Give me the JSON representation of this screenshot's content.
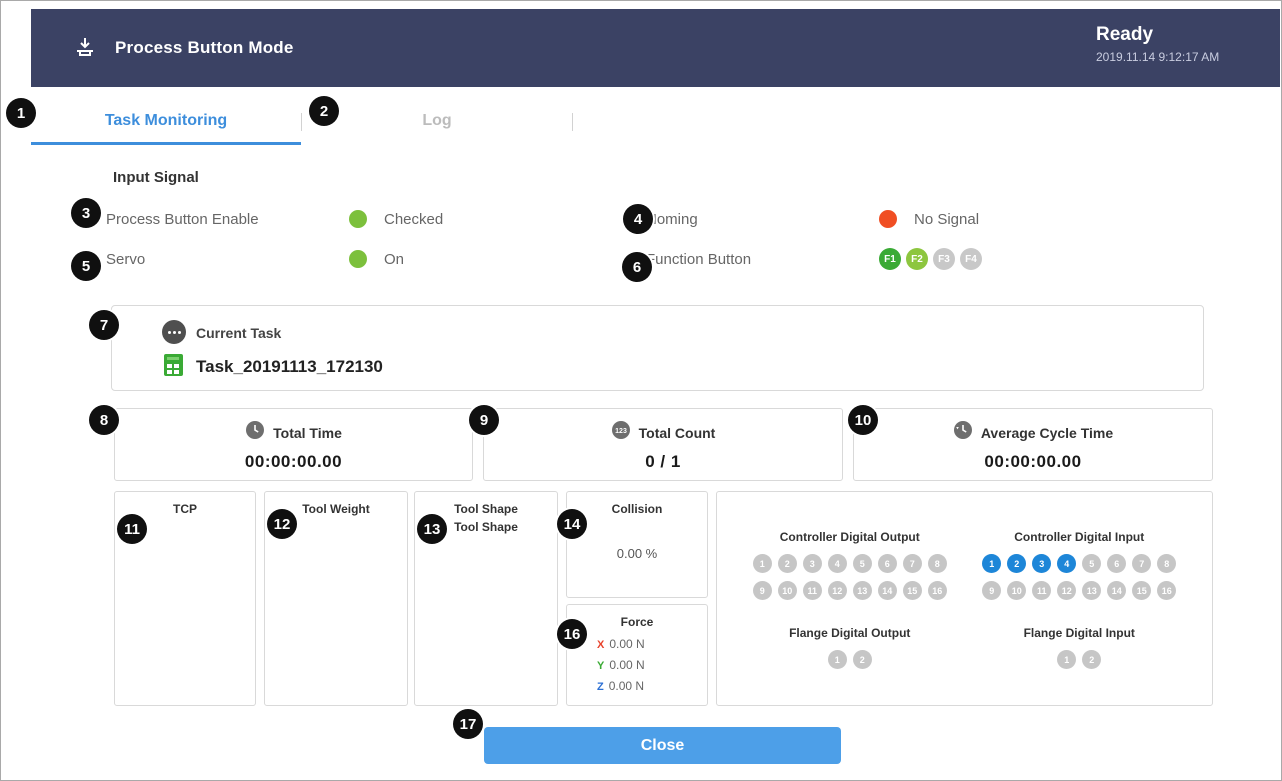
{
  "header": {
    "title": "Process Button Mode",
    "status": "Ready",
    "timestamp": "2019.11.14 9:12:17 AM"
  },
  "tabs": {
    "task_monitoring": "Task Monitoring",
    "log": "Log"
  },
  "input_signal": {
    "title": "Input Signal",
    "process_button_enable": {
      "label": "Process Button Enable",
      "status": "Checked",
      "dot_color": "#7cc03c"
    },
    "homing": {
      "label": "Homing",
      "status": "No Signal",
      "dot_color": "#f04e23"
    },
    "servo": {
      "label": "Servo",
      "status": "On",
      "dot_color": "#7cc03c"
    },
    "function_button": {
      "label": "Function Button",
      "buttons": [
        {
          "label": "F1",
          "color": "#3aaa35"
        },
        {
          "label": "F2",
          "color": "#8dc63f"
        },
        {
          "label": "F3",
          "color": "#c8c8c8"
        },
        {
          "label": "F4",
          "color": "#c8c8c8"
        }
      ]
    }
  },
  "current_task": {
    "label": "Current Task",
    "name": "Task_20191113_172130"
  },
  "stats": {
    "total_time": {
      "label": "Total Time",
      "value": "00:00:00.00"
    },
    "total_count": {
      "label": "Total Count",
      "value": "0 / 1"
    },
    "average_cycle_time": {
      "label": "Average Cycle Time",
      "value": "00:00:00.00"
    }
  },
  "panels": {
    "tcp": {
      "label": "TCP"
    },
    "tool_weight": {
      "label": "Tool Weight"
    },
    "tool_shape": {
      "label": "Tool Shape",
      "sublabel": "Tool Shape"
    },
    "collision": {
      "label": "Collision",
      "value": "0.00 %"
    },
    "force": {
      "label": "Force",
      "axes": [
        {
          "axis": "X",
          "value": "0.00 N",
          "color": "#e8432c"
        },
        {
          "axis": "Y",
          "value": "0.00 N",
          "color": "#3aaa35"
        },
        {
          "axis": "Z",
          "value": "0.00 N",
          "color": "#2b6fd4"
        }
      ]
    }
  },
  "digital": {
    "controller_output": {
      "label": "Controller Digital Output",
      "count": 16,
      "active": []
    },
    "controller_input": {
      "label": "Controller Digital Input",
      "count": 16,
      "active": [
        1,
        2,
        3,
        4
      ]
    },
    "flange_output": {
      "label": "Flange Digital Output",
      "count": 2,
      "active": []
    },
    "flange_input": {
      "label": "Flange Digital Input",
      "count": 2,
      "active": []
    }
  },
  "close_button": "Close",
  "callouts": [
    "1",
    "2",
    "3",
    "4",
    "5",
    "6",
    "7",
    "8",
    "9",
    "10",
    "11",
    "12",
    "13",
    "14",
    "16",
    "17"
  ],
  "colors": {
    "header_bg": "#3b4264",
    "accent_blue": "#3d8edc",
    "io_active": "#1d86d8",
    "close_bg": "#4d9fe8",
    "signal_green": "#7cc03c",
    "signal_red": "#f04e23"
  }
}
